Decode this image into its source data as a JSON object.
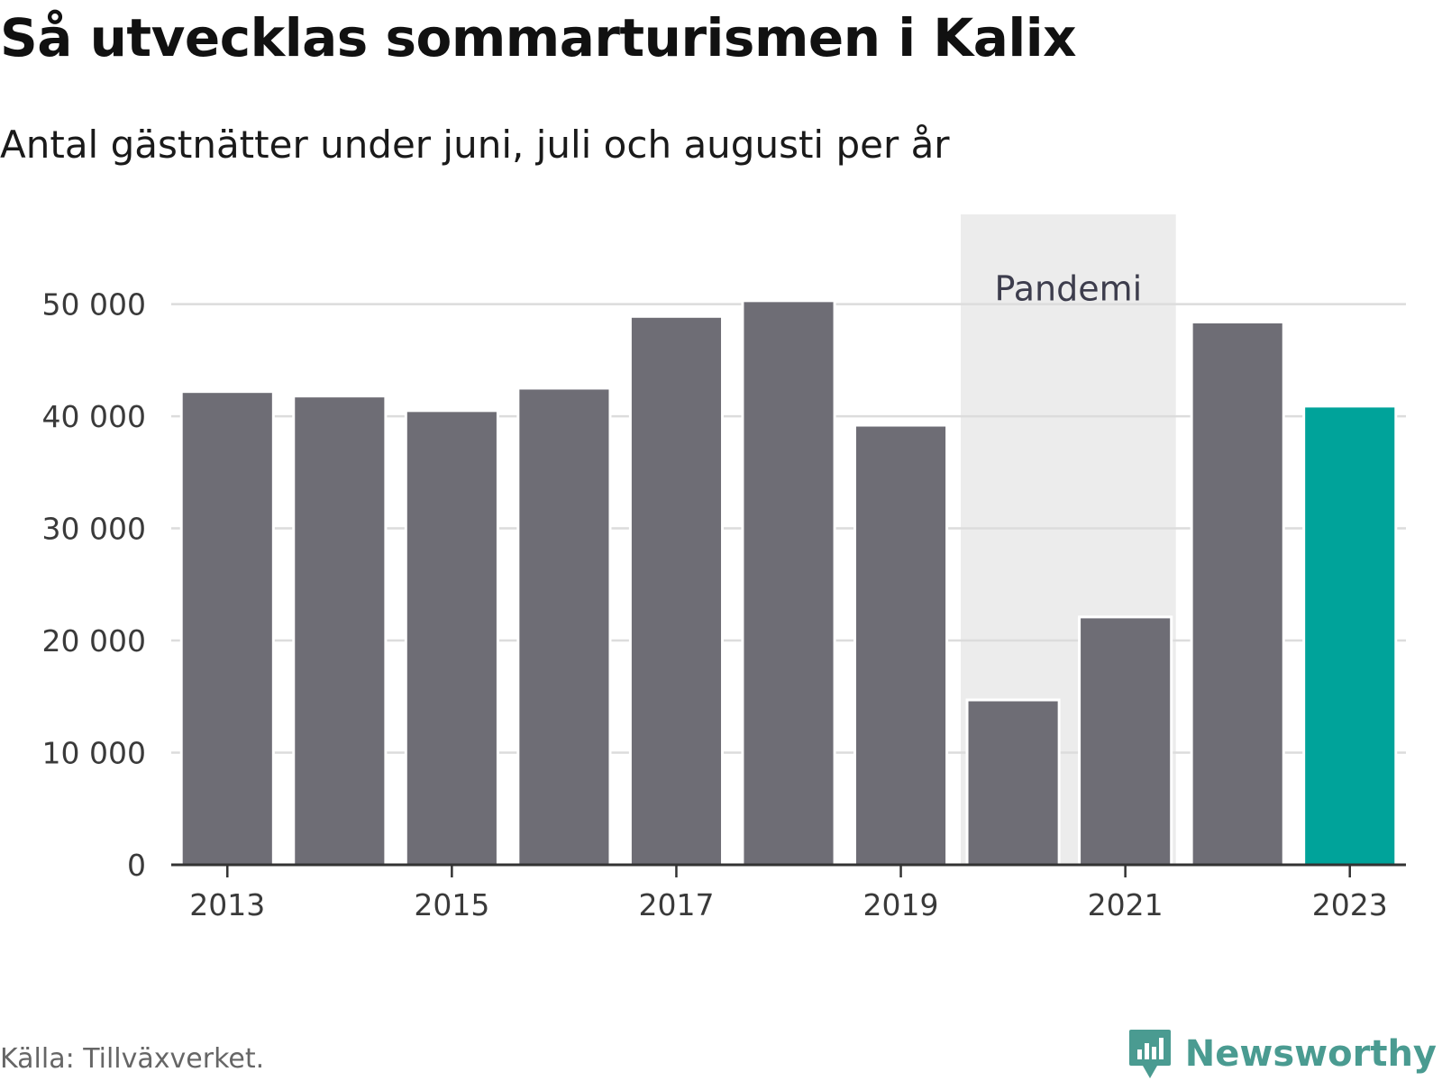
{
  "header": {
    "title": "Så utvecklas sommarturismen i Kalix",
    "subtitle": "Antal gästnätter under juni, juli och augusti per år"
  },
  "chart_data": {
    "type": "bar",
    "title": "Så utvecklas sommarturismen i Kalix",
    "subtitle": "Antal gästnätter under juni, juli och augusti per år",
    "categories": [
      "2013",
      "2014",
      "2015",
      "2016",
      "2017",
      "2018",
      "2019",
      "2020",
      "2021",
      "2022",
      "2023"
    ],
    "values": [
      42200,
      41800,
      40500,
      42500,
      48900,
      50300,
      39200,
      14700,
      22100,
      48400,
      40900
    ],
    "highlight_category": "2023",
    "x_tick_labels": [
      "2013",
      "2015",
      "2017",
      "2019",
      "2021",
      "2023"
    ],
    "y_ticks": [
      0,
      10000,
      20000,
      30000,
      40000,
      50000
    ],
    "y_tick_labels": [
      "0",
      "10 000",
      "20 000",
      "30 000",
      "40 000",
      "50 000"
    ],
    "ylim": [
      0,
      58000
    ],
    "grid": "horizontal",
    "xlabel": "",
    "ylabel": "",
    "annotation": {
      "label": "Pandemi",
      "range": [
        "2020",
        "2021"
      ]
    },
    "colors": {
      "bar": "#6e6d75",
      "highlight": "#00a39a",
      "pandemic_band": "#ececec",
      "gridline": "#dcdcdc",
      "axis": "#333333"
    }
  },
  "footer": {
    "source": "Källa: Tillväxverket.",
    "brand": "Newsworthy",
    "brand_icon": "newsworthy-logo-icon",
    "brand_color": "#4a9b91"
  }
}
